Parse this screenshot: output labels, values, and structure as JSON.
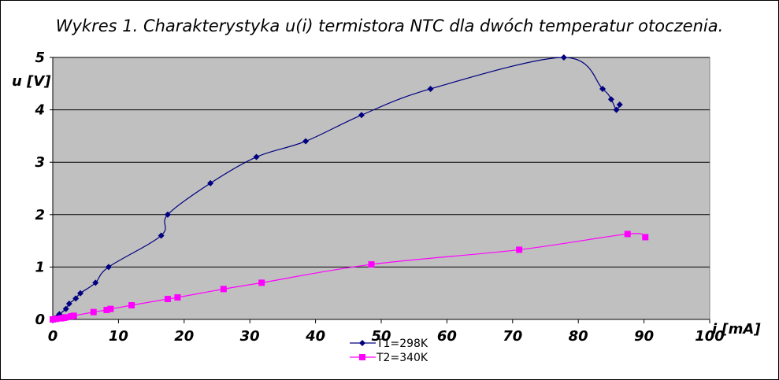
{
  "chart_data": {
    "type": "line",
    "title": "Wykres 1. Charakterystyka u(i) termistora NTC dla dwóch temperatur otoczenia.",
    "xlabel": "i [mA]",
    "ylabel": "u [V]",
    "xlim": [
      0,
      100
    ],
    "ylim": [
      0,
      5
    ],
    "xticks": [
      "0",
      "10",
      "20",
      "30",
      "40",
      "50",
      "60",
      "70",
      "80",
      "90",
      "100"
    ],
    "yticks": [
      "0",
      "1",
      "2",
      "3",
      "4",
      "5"
    ],
    "grid": "horizontal",
    "legend_position": "bottom-center",
    "colors": {
      "plot_bg": "#c0c0c0",
      "T1": "#000080",
      "T2": "#ff00ff"
    },
    "series": [
      {
        "name": "T1=298K",
        "marker": "diamond",
        "points": [
          [
            0,
            0
          ],
          [
            0.3,
            0.02
          ],
          [
            0.7,
            0.05
          ],
          [
            1,
            0.1
          ],
          [
            2,
            0.2
          ],
          [
            2.5,
            0.3
          ],
          [
            3.5,
            0.4
          ],
          [
            4.2,
            0.5
          ],
          [
            6.5,
            0.7
          ],
          [
            8.5,
            1.0
          ],
          [
            16.5,
            1.6
          ],
          [
            17.5,
            2.0
          ],
          [
            24,
            2.6
          ],
          [
            31,
            3.1
          ],
          [
            38.5,
            3.4
          ],
          [
            47,
            3.9
          ],
          [
            57.5,
            4.4
          ],
          [
            77.8,
            5.0
          ],
          [
            83.7,
            4.4
          ],
          [
            85,
            4.2
          ],
          [
            85.8,
            4.0
          ],
          [
            86.3,
            4.1
          ]
        ]
      },
      {
        "name": "T2=340K",
        "marker": "square",
        "points": [
          [
            0,
            0
          ],
          [
            0.5,
            0.01
          ],
          [
            1.3,
            0.02
          ],
          [
            1.7,
            0.03
          ],
          [
            2,
            0.04
          ],
          [
            2.8,
            0.06
          ],
          [
            3.2,
            0.07
          ],
          [
            6.2,
            0.14
          ],
          [
            8.2,
            0.18
          ],
          [
            8.8,
            0.2
          ],
          [
            12,
            0.27
          ],
          [
            17.5,
            0.39
          ],
          [
            19,
            0.42
          ],
          [
            26,
            0.58
          ],
          [
            31.8,
            0.7
          ],
          [
            48.5,
            1.05
          ],
          [
            71,
            1.33
          ],
          [
            87.5,
            1.63
          ],
          [
            90.2,
            1.57
          ]
        ]
      }
    ]
  }
}
